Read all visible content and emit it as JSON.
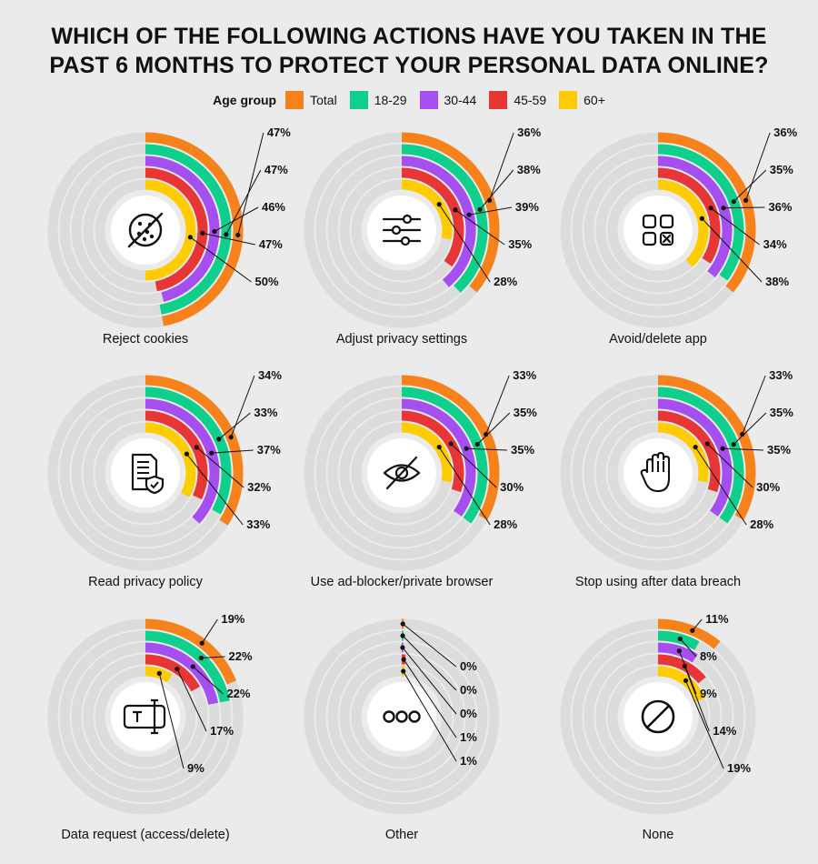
{
  "title_lines": [
    "WHICH OF THE FOLLOWING ACTIONS HAVE YOU TAKEN IN THE",
    "PAST 6 MONTHS TO PROTECT YOUR PERSONAL DATA ONLINE?"
  ],
  "legend": {
    "title": "Age group",
    "items": [
      {
        "label": "Total",
        "color": "#f7821b"
      },
      {
        "label": "18-29",
        "color": "#0fcf8c"
      },
      {
        "label": "30-44",
        "color": "#a64ff0"
      },
      {
        "label": "45-59",
        "color": "#e83535"
      },
      {
        "label": "60+",
        "color": "#ffcc00"
      }
    ]
  },
  "track_color": "#dcdcdc",
  "chart_data": {
    "type": "radial-bar",
    "series_names": [
      "Total",
      "18-29",
      "30-44",
      "45-59",
      "60+"
    ],
    "colors": [
      "#f7821b",
      "#0fcf8c",
      "#a64ff0",
      "#e83535",
      "#ffcc00"
    ],
    "unit": "%",
    "charts": [
      {
        "label": "Reject cookies",
        "icon": "cookie-icon",
        "values": [
          47,
          47,
          46,
          47,
          50
        ]
      },
      {
        "label": "Adjust privacy settings",
        "icon": "sliders-icon",
        "values": [
          36,
          38,
          39,
          35,
          28
        ]
      },
      {
        "label": "Avoid/delete app",
        "icon": "app-grid-icon",
        "values": [
          36,
          35,
          36,
          34,
          38
        ]
      },
      {
        "label": "Read privacy policy",
        "icon": "document-shield-icon",
        "values": [
          34,
          33,
          37,
          32,
          33
        ]
      },
      {
        "label": "Use ad-blocker/private browser",
        "icon": "eye-off-icon",
        "values": [
          33,
          35,
          35,
          30,
          28
        ]
      },
      {
        "label": "Stop using after data breach",
        "icon": "hand-stop-icon",
        "values": [
          33,
          35,
          35,
          30,
          28
        ]
      },
      {
        "label": "Data request (access/delete)",
        "icon": "message-text-icon",
        "values": [
          19,
          22,
          22,
          17,
          9
        ]
      },
      {
        "label": "Other",
        "icon": "dots-icon",
        "values": [
          0,
          0,
          0,
          1,
          1
        ]
      },
      {
        "label": "None",
        "icon": "ban-icon",
        "values": [
          11,
          8,
          9,
          14,
          19
        ]
      }
    ]
  }
}
